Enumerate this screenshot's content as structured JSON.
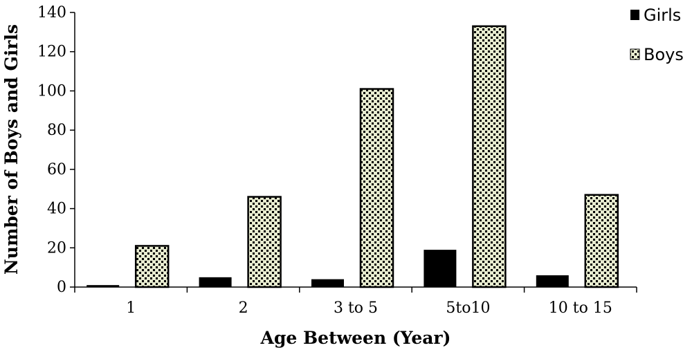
{
  "chart_data": {
    "type": "bar",
    "categories": [
      "1",
      "2",
      "3 to 5",
      "5to10",
      "10 to 15"
    ],
    "series": [
      {
        "name": "Girls",
        "values": [
          1,
          5,
          4,
          19,
          6
        ]
      },
      {
        "name": "Boys",
        "values": [
          21,
          46,
          101,
          133,
          47
        ]
      }
    ],
    "xlabel": "Age Between (Year)",
    "ylabel": "Number of Boys and Girls",
    "ylim": [
      0,
      140
    ],
    "yticks": [
      0,
      20,
      40,
      60,
      80,
      100,
      120,
      140
    ],
    "grid": false,
    "legend_position": "top-right",
    "colors": {
      "Girls": "#000000",
      "Boys": "#e8ecd0",
      "pattern": "#000000"
    }
  }
}
